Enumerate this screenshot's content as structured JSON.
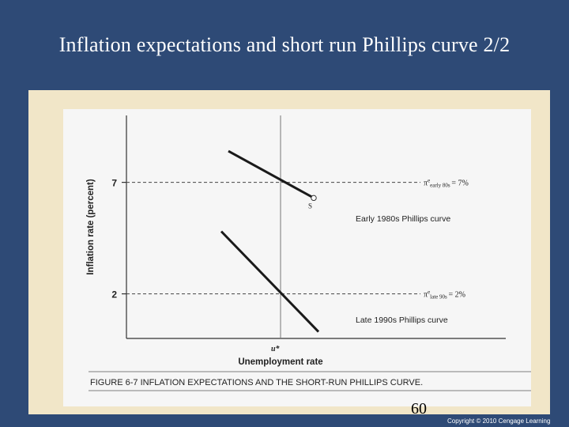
{
  "slide": {
    "title": "Inflation expectations and short run Phillips curve 2/2",
    "page_number": "60",
    "copyright": "Copyright © 2010 Cengage Learning"
  },
  "chart_data": {
    "type": "line",
    "title": "FIGURE 6-7   INFLATION EXPECTATIONS AND THE SHORT-RUN PHILLIPS CURVE.",
    "xlabel": "Unemployment rate",
    "ylabel": "Inflation rate (percent)",
    "x_tick_labels": [
      "u*"
    ],
    "y_ticks": [
      2,
      7
    ],
    "ylim": [
      0,
      10
    ],
    "grid": false,
    "series": [
      {
        "name": "Early 1980s Phillips curve",
        "points": [
          [
            -0.22,
            8.4
          ],
          [
            0.14,
            6.3
          ]
        ],
        "expectation_label": "π",
        "expectation_sup": "e",
        "expectation_sub": "early 80s",
        "expectation_value": "= 7%",
        "expected_inflation": 7,
        "color": "#1a1a1a"
      },
      {
        "name": "Late 1990s Phillips curve",
        "points": [
          [
            -0.25,
            4.8
          ],
          [
            0.16,
            0.3
          ]
        ],
        "expectation_label": "π",
        "expectation_sup": "e",
        "expectation_sub": "late 90s",
        "expectation_value": "= 2%",
        "expected_inflation": 2,
        "color": "#1a1a1a"
      }
    ],
    "annotations": [
      {
        "label": "S",
        "x": 0.14,
        "y": 6.3
      }
    ]
  }
}
